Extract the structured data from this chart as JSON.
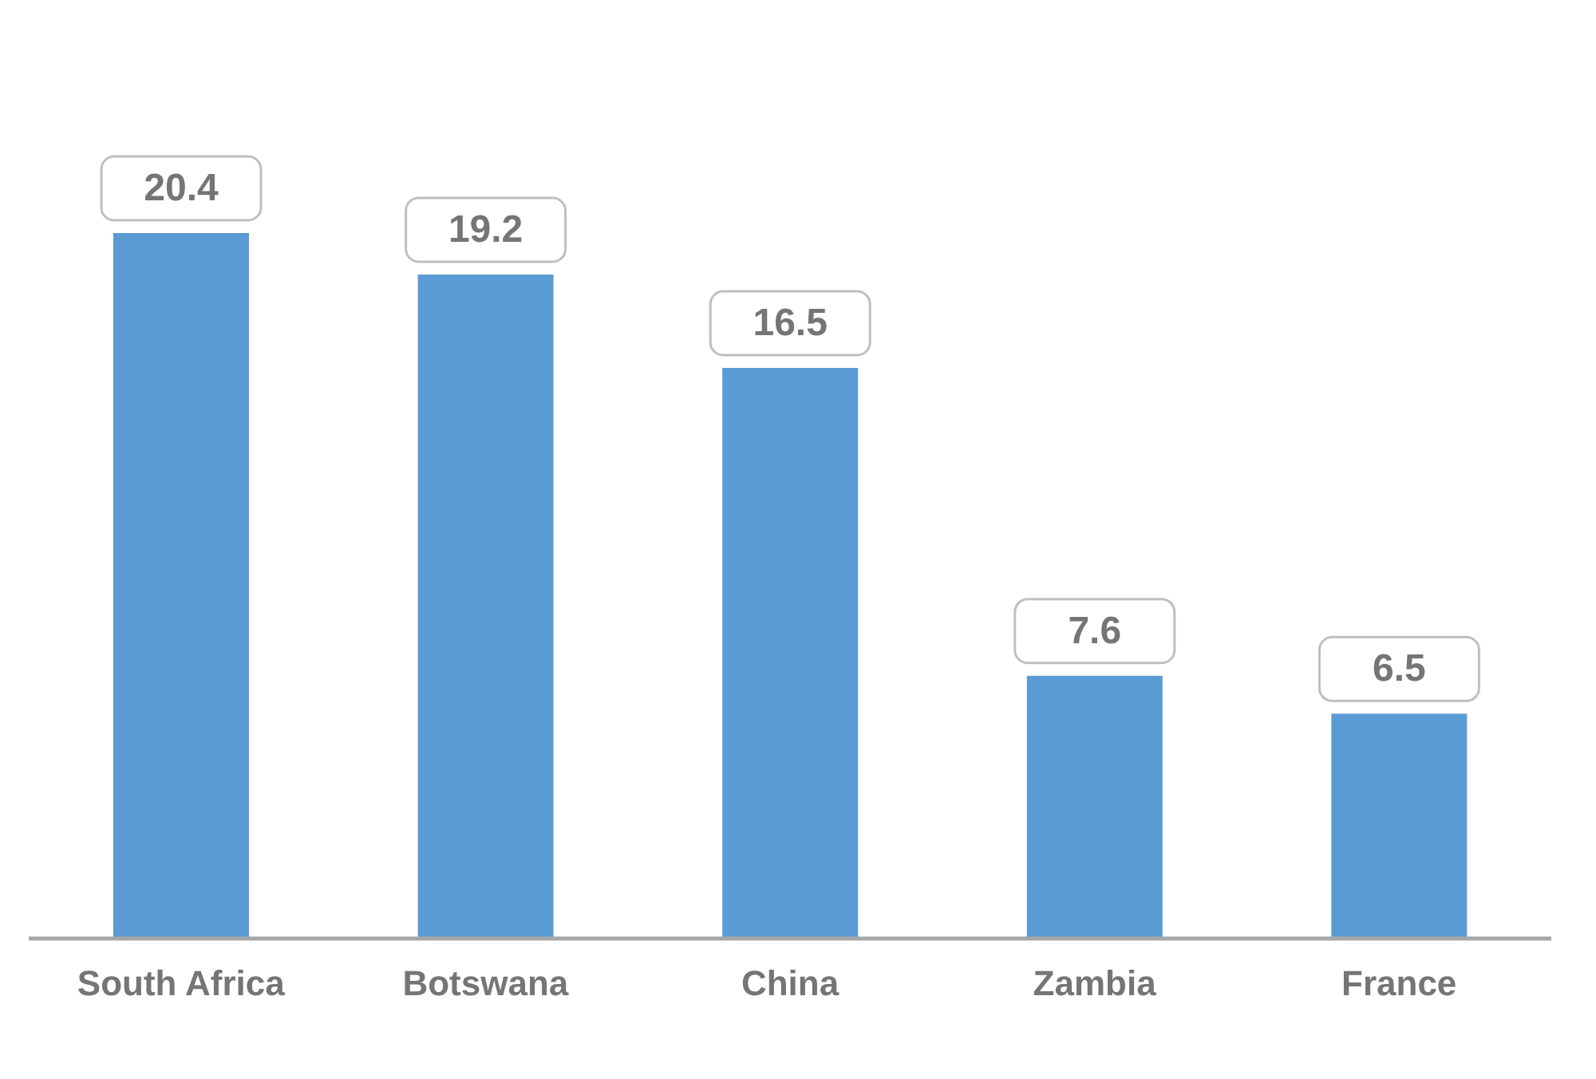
{
  "chart_data": {
    "type": "bar",
    "categories": [
      "South Africa",
      "Botswana",
      "China",
      "Zambia",
      "France"
    ],
    "values": [
      20.4,
      19.2,
      16.5,
      7.6,
      6.5
    ],
    "color": "#5b9bd5",
    "data_labels": true
  }
}
